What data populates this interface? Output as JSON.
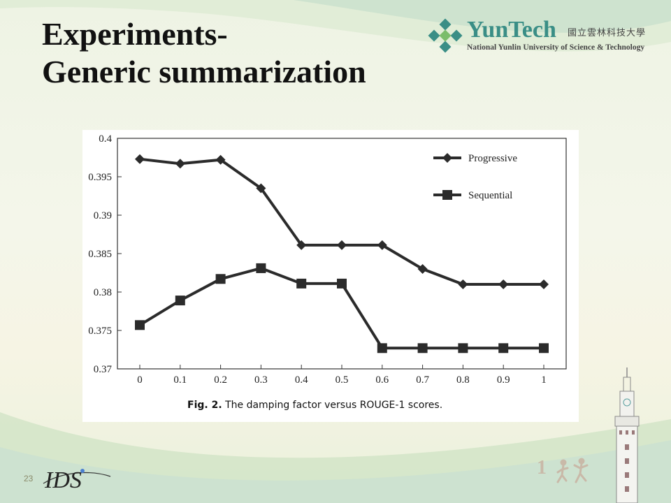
{
  "slide": {
    "title_line1": "Experiments-",
    "title_line2": "Generic summarization",
    "page_number": "23"
  },
  "logo": {
    "name": "YunTech",
    "chinese": "國立雲林科技大學",
    "subtitle": "National Yunlin University of Science & Technology",
    "color": "#3a8e86"
  },
  "footer_logo": {
    "text": "IDS"
  },
  "colors": {
    "series": "#2b2b2b",
    "axis": "#333333"
  },
  "chart_data": {
    "type": "line",
    "caption_label": "Fig. 2.",
    "caption_text": "The damping factor versus ROUGE-1 scores.",
    "x": [
      0,
      0.1,
      0.2,
      0.3,
      0.4,
      0.5,
      0.6,
      0.7,
      0.8,
      0.9,
      1
    ],
    "x_tick_labels": [
      "0",
      "0.1",
      "0.2",
      "0.3",
      "0.4",
      "0.5",
      "0.6",
      "0.7",
      "0.8",
      "0.9",
      "1"
    ],
    "y_tick_labels": [
      "0.37",
      "0.375",
      "0.38",
      "0.385",
      "0.39",
      "0.395",
      "0.4"
    ],
    "y_ticks": [
      0.37,
      0.375,
      0.38,
      0.385,
      0.39,
      0.395,
      0.4
    ],
    "ylim": [
      0.37,
      0.4
    ],
    "grid": false,
    "legend_position": "top-right",
    "series": [
      {
        "name": "Progressive",
        "marker": "diamond",
        "values": [
          0.3973,
          0.3967,
          0.3972,
          0.3935,
          0.3861,
          0.3861,
          0.3861,
          0.383,
          0.381,
          0.381,
          0.381
        ]
      },
      {
        "name": "Sequential",
        "marker": "square",
        "values": [
          0.3757,
          0.3789,
          0.3817,
          0.3831,
          0.3811,
          0.3811,
          0.3727,
          0.3727,
          0.3727,
          0.3727,
          0.3727
        ]
      }
    ]
  }
}
